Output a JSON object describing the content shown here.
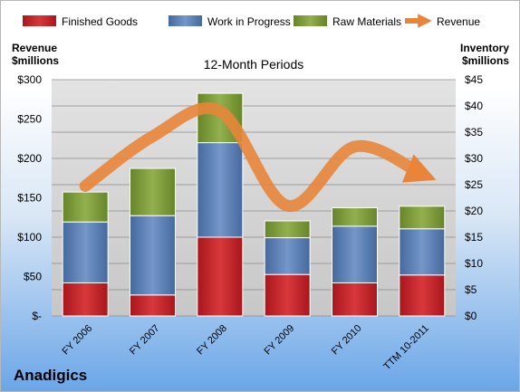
{
  "company": "Anadigics",
  "chart_data": {
    "type": "bar",
    "stacked": true,
    "title": "12-Month Periods",
    "ylabel_left": [
      "Revenue",
      "$millions"
    ],
    "ylabel_right": [
      "Inventory",
      "$millions"
    ],
    "categories": [
      "FY 2006",
      "FY 2007",
      "FY 2008",
      "FY 2009",
      "FY 2010",
      "TTM 10-2011"
    ],
    "series": [
      {
        "name": "Finished Goods",
        "axis": "right",
        "color": "#c0282d",
        "values": [
          6.3,
          4.0,
          15.0,
          7.9,
          6.3,
          7.8
        ]
      },
      {
        "name": "Work in Progress",
        "axis": "right",
        "color": "#5b80b7",
        "values": [
          11.6,
          15.1,
          18.0,
          7.0,
          10.8,
          8.8
        ]
      },
      {
        "name": "Raw Materials",
        "axis": "right",
        "color": "#7f9e3c",
        "values": [
          5.7,
          9.0,
          9.4,
          3.2,
          3.5,
          4.3
        ]
      },
      {
        "name": "Revenue",
        "axis": "left",
        "type": "line",
        "color": "#e8853a",
        "values": [
          165,
          228,
          260,
          140,
          215,
          180
        ]
      }
    ],
    "ylim_left": [
      0,
      300
    ],
    "ylim_right": [
      0,
      45
    ],
    "yticks_left": [
      "$-",
      "$50",
      "$100",
      "$150",
      "$200",
      "$250",
      "$300"
    ],
    "yticks_right": [
      "$0",
      "$5",
      "$10",
      "$15",
      "$20",
      "$25",
      "$30",
      "$35",
      "$40",
      "$45"
    ],
    "legend": "top",
    "grid": true
  }
}
